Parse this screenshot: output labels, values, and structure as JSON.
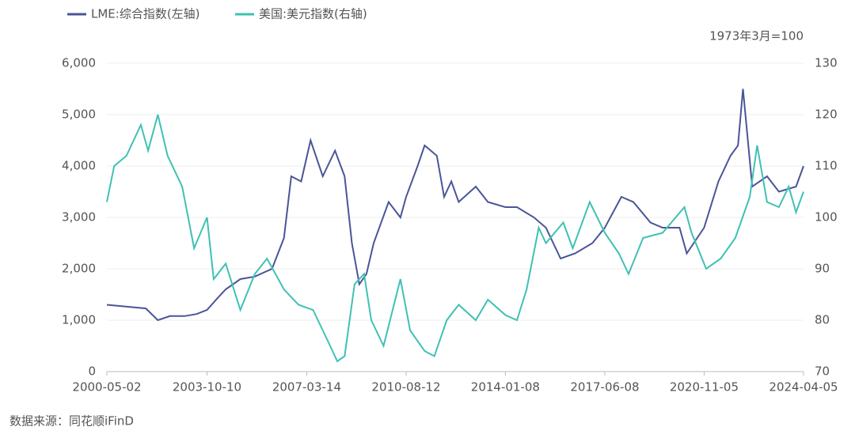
{
  "chart_data": {
    "type": "line",
    "note": "1973年3月=100",
    "source": "数据来源：同花顺iFinD",
    "xlim": [
      "2000-05-02",
      "2024-04-05"
    ],
    "xticks": [
      "2000-05-02",
      "2003-10-10",
      "2007-03-14",
      "2010-08-12",
      "2014-01-08",
      "2017-06-08",
      "2020-11-05",
      "2024-04-05"
    ],
    "ylim": [
      0,
      6000
    ],
    "yticks": [
      0,
      {
        "value": 1000,
        "label": "1,000"
      },
      {
        "value": 2000,
        "label": "2,000"
      },
      {
        "value": 3000,
        "label": "3,000"
      },
      {
        "value": 4000,
        "label": "4,000"
      },
      {
        "value": 5000,
        "label": "5,000"
      },
      {
        "value": 6000,
        "label": "6,000"
      }
    ],
    "y2lim": [
      70,
      130
    ],
    "y2ticks": [
      70,
      80,
      90,
      100,
      110,
      120,
      130
    ],
    "grid": true,
    "series": [
      {
        "name": "LME:综合指数(左轴)",
        "color": "#4a5597",
        "x": [
          "2000-05-02",
          "2001-09-03",
          "2002-02-01",
          "2002-07-01",
          "2003-01-02",
          "2003-06-02",
          "2003-10-10",
          "2004-03-01",
          "2004-06-01",
          "2004-12-01",
          "2005-06-01",
          "2006-01-03",
          "2006-06-01",
          "2006-09-01",
          "2007-01-03",
          "2007-05-01",
          "2007-10-01",
          "2008-03-03",
          "2008-07-01",
          "2008-10-01",
          "2009-01-02",
          "2009-04-01",
          "2009-07-01",
          "2010-01-04",
          "2010-06-01",
          "2010-08-12",
          "2011-01-03",
          "2011-04-01",
          "2011-09-01",
          "2011-12-01",
          "2012-03-01",
          "2012-06-01",
          "2013-01-02",
          "2013-06-03",
          "2014-01-08",
          "2014-06-02",
          "2015-01-02",
          "2015-06-01",
          "2015-12-01",
          "2016-06-01",
          "2017-01-03",
          "2017-06-08",
          "2018-01-02",
          "2018-06-01",
          "2019-01-02",
          "2019-06-03",
          "2020-01-02",
          "2020-04-01",
          "2020-11-05",
          "2021-05-03",
          "2021-10-01",
          "2022-01-04",
          "2022-03-07",
          "2022-07-01",
          "2023-01-03",
          "2023-06-01",
          "2024-01-02",
          "2024-04-05"
        ],
        "values": [
          1300,
          1230,
          1000,
          1080,
          1080,
          1120,
          1200,
          1450,
          1600,
          1800,
          1850,
          2000,
          2600,
          3800,
          3700,
          4500,
          3800,
          4300,
          3800,
          2500,
          1700,
          1900,
          2500,
          3300,
          3000,
          3400,
          4000,
          4400,
          4200,
          3400,
          3700,
          3300,
          3600,
          3300,
          3200,
          3200,
          3000,
          2800,
          2200,
          2300,
          2500,
          2800,
          3400,
          3300,
          2900,
          2800,
          2800,
          2300,
          2800,
          3700,
          4200,
          4400,
          5500,
          3600,
          3800,
          3500,
          3600,
          4000
        ]
      },
      {
        "name": "美国:美元指数(右轴)",
        "color": "#3fc1b4",
        "axis": "y2",
        "x": [
          "2000-05-02",
          "2000-08-01",
          "2001-01-02",
          "2001-07-02",
          "2001-10-01",
          "2002-02-01",
          "2002-06-03",
          "2002-12-02",
          "2003-05-01",
          "2003-10-10",
          "2004-01-02",
          "2004-06-01",
          "2004-12-01",
          "2005-06-01",
          "2005-11-01",
          "2006-06-01",
          "2006-12-01",
          "2007-06-01",
          "2007-12-03",
          "2008-04-01",
          "2008-07-01",
          "2008-11-03",
          "2009-03-02",
          "2009-06-01",
          "2009-11-02",
          "2010-06-01",
          "2010-10-01",
          "2011-04-01",
          "2011-08-01",
          "2012-01-03",
          "2012-06-01",
          "2013-01-02",
          "2013-06-03",
          "2014-01-08",
          "2014-06-02",
          "2014-10-01",
          "2015-03-02",
          "2015-06-01",
          "2016-01-04",
          "2016-05-02",
          "2016-12-01",
          "2017-06-08",
          "2017-12-01",
          "2018-04-02",
          "2018-10-01",
          "2019-06-03",
          "2020-03-02",
          "2020-06-01",
          "2020-12-01",
          "2021-06-01",
          "2021-12-01",
          "2022-06-01",
          "2022-09-01",
          "2023-01-03",
          "2023-06-01",
          "2023-10-02",
          "2024-01-02",
          "2024-04-05"
        ],
        "values": [
          103,
          110,
          112,
          118,
          113,
          120,
          112,
          106,
          94,
          100,
          88,
          91,
          82,
          89,
          92,
          86,
          83,
          82,
          76,
          72,
          73,
          87,
          89,
          80,
          75,
          88,
          78,
          74,
          73,
          80,
          83,
          80,
          84,
          81,
          80,
          86,
          98,
          95,
          99,
          94,
          103,
          97,
          93,
          89,
          96,
          97,
          102,
          97,
          90,
          92,
          96,
          104,
          114,
          103,
          102,
          106,
          101,
          105
        ]
      }
    ]
  }
}
